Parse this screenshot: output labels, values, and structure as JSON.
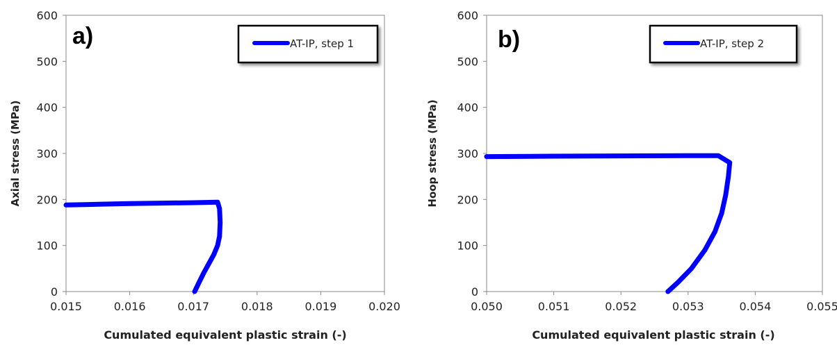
{
  "chart_data": [
    {
      "type": "line",
      "panel_label": "a)",
      "xlabel": "Cumulated equivalent plastic strain (-)",
      "ylabel": "Axial stress  (MPa)",
      "xlim": [
        0.015,
        0.02
      ],
      "ylim": [
        0,
        600
      ],
      "x_ticks": [
        "0.015",
        "0.016",
        "0.017",
        "0.018",
        "0.019",
        "0.020"
      ],
      "y_ticks": [
        "0",
        "100",
        "200",
        "300",
        "400",
        "500",
        "600"
      ],
      "legend_position": "top-right",
      "series": [
        {
          "name": "AT-IP, step 1",
          "color": "#0000ff",
          "x": [
            0.015,
            0.0155,
            0.016,
            0.0165,
            0.017,
            0.01738,
            0.01741,
            0.01742,
            0.01741,
            0.01738,
            0.01732,
            0.01724,
            0.01716,
            0.01709,
            0.01702
          ],
          "y": [
            188,
            189.5,
            191,
            192,
            193,
            194,
            180,
            150,
            120,
            100,
            80,
            60,
            40,
            20,
            0
          ]
        }
      ]
    },
    {
      "type": "line",
      "panel_label": "b)",
      "xlabel": "Cumulated equivalent plastic strain  (-)",
      "ylabel": "Hoop  stress  (MPa)",
      "xlim": [
        0.05,
        0.055
      ],
      "ylim": [
        0,
        600
      ],
      "x_ticks": [
        "0.050",
        "0.051",
        "0.052",
        "0.053",
        "0.054",
        "0.055"
      ],
      "y_ticks": [
        "0",
        "100",
        "200",
        "300",
        "400",
        "500",
        "600"
      ],
      "legend_position": "top-right",
      "series": [
        {
          "name": "AT-IP, step 2",
          "color": "#0000ff",
          "x": [
            0.05,
            0.051,
            0.052,
            0.053,
            0.05345,
            0.05362,
            0.0536,
            0.05356,
            0.0535,
            0.0534,
            0.05325,
            0.05305,
            0.05285,
            0.0527
          ],
          "y": [
            293,
            294,
            294.5,
            295,
            295,
            280,
            250,
            210,
            170,
            130,
            90,
            50,
            20,
            0
          ]
        }
      ]
    }
  ]
}
